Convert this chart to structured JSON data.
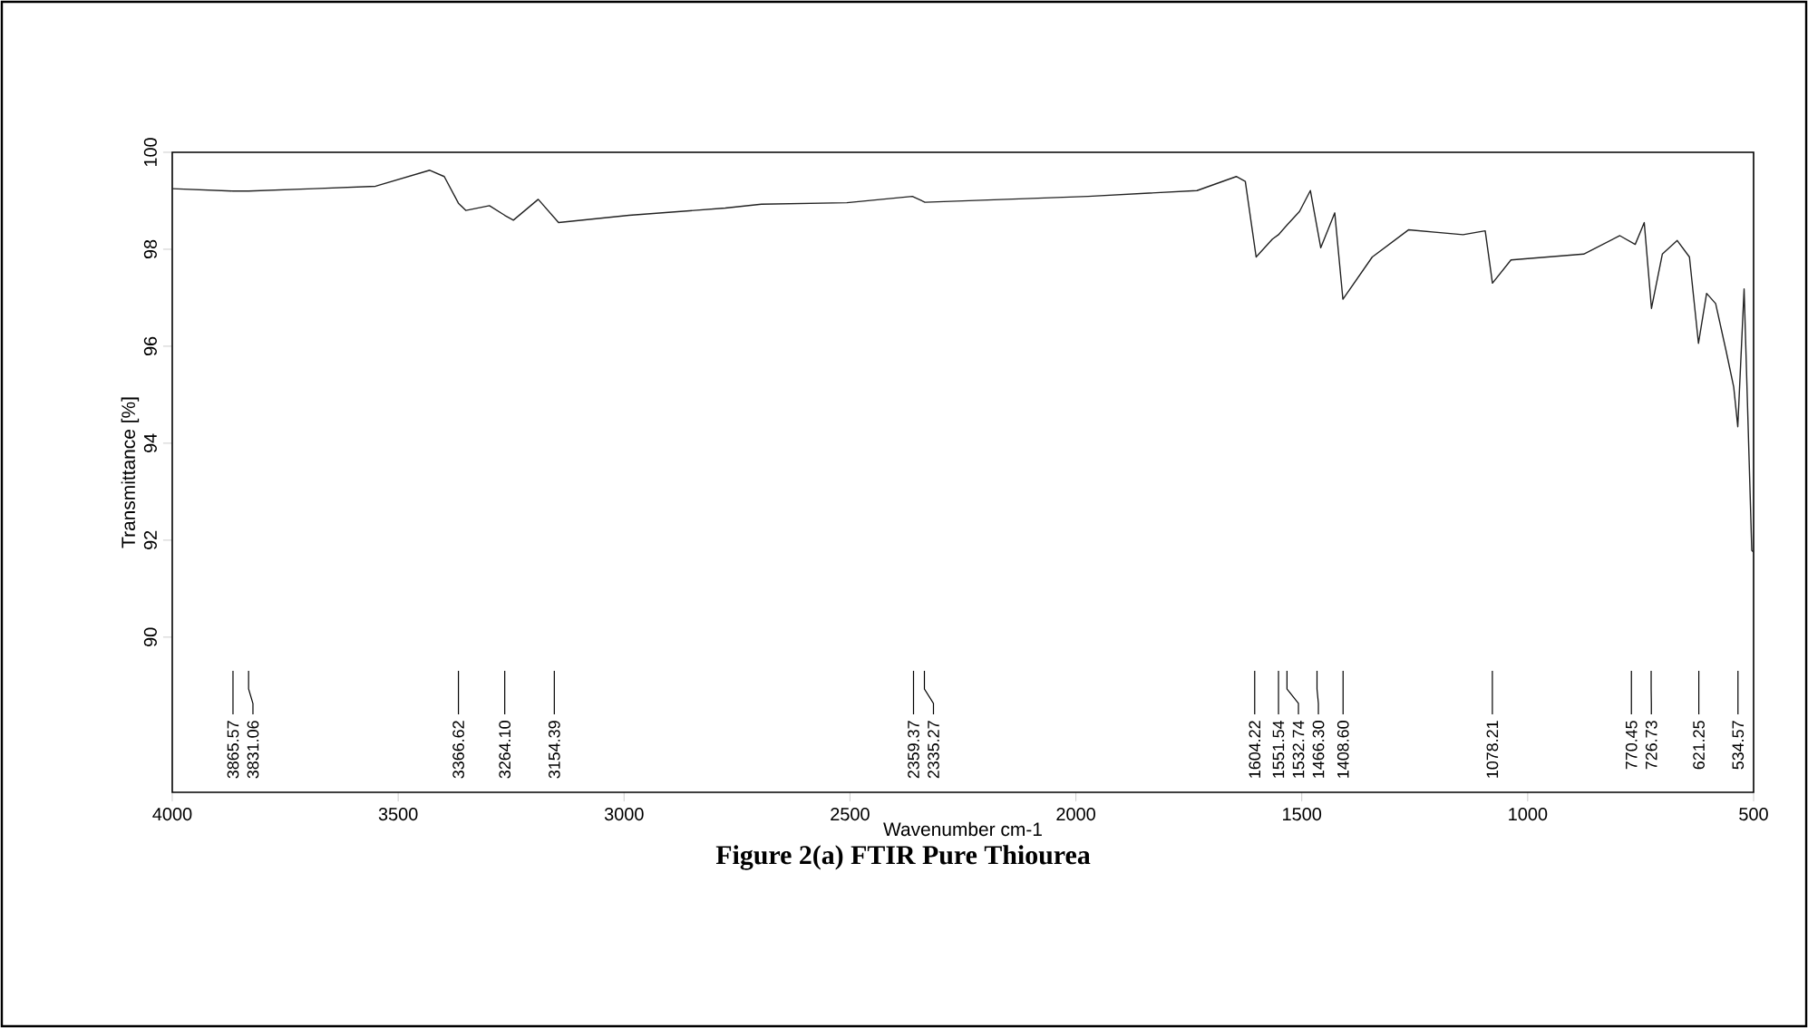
{
  "chart_data": {
    "type": "line",
    "title": "Figure 2(a) FTIR Pure Thiourea",
    "xlabel": "Wavenumber cm-1",
    "ylabel": "Transmittance [%]",
    "xlim": [
      4000,
      500
    ],
    "ylim": [
      86.8,
      100
    ],
    "xticks": [
      4000,
      3500,
      3000,
      2500,
      2000,
      1500,
      1000,
      500
    ],
    "yticks": [
      90,
      92,
      94,
      96,
      98,
      100
    ],
    "grid": false,
    "marker": "none",
    "line_style": "solid",
    "series": [
      {
        "color": "#222222",
        "x": [
          4000,
          3865.57,
          3831.06,
          3687,
          3550,
          3430,
          3398,
          3366.62,
          3350,
          3298,
          3264.1,
          3245,
          3190,
          3145,
          2989,
          2776,
          2696,
          2507,
          2362,
          2334,
          1973,
          1732,
          1645,
          1625,
          1601,
          1565,
          1551.54,
          1532.74,
          1505,
          1481,
          1458,
          1427,
          1409,
          1344,
          1264,
          1143,
          1094,
          1078,
          1037,
          876,
          796,
          762,
          742,
          726,
          702,
          669,
          642,
          622,
          604,
          584,
          561,
          544,
          535,
          521,
          504,
          500
        ],
        "values": [
          99.25,
          99.2,
          99.2,
          99.25,
          99.3,
          99.63,
          99.5,
          98.95,
          98.8,
          98.9,
          98.7,
          98.6,
          99.03,
          98.55,
          98.7,
          98.85,
          98.93,
          98.96,
          99.09,
          98.97,
          99.09,
          99.21,
          99.5,
          99.4,
          97.84,
          98.21,
          98.3,
          98.5,
          98.78,
          99.21,
          98.03,
          98.75,
          96.97,
          97.84,
          98.4,
          98.3,
          98.38,
          97.3,
          97.78,
          97.9,
          98.28,
          98.1,
          98.55,
          96.78,
          97.9,
          98.18,
          97.84,
          96.06,
          97.09,
          96.88,
          95.91,
          95.16,
          94.34,
          97.18,
          91.79,
          91.75
        ]
      }
    ],
    "annotations": [
      {
        "text": "3865.57",
        "x": 3865.57
      },
      {
        "text": "3831.06",
        "x": 3831.06
      },
      {
        "text": "3366.62",
        "x": 3366.62
      },
      {
        "text": "3264.10",
        "x": 3264.1
      },
      {
        "text": "3154.39",
        "x": 3154.39
      },
      {
        "text": "2359.37",
        "x": 2359.37
      },
      {
        "text": "2335.27",
        "x": 2335.27
      },
      {
        "text": "1604.22",
        "x": 1604.22
      },
      {
        "text": "1551.54",
        "x": 1551.54
      },
      {
        "text": "1532.74",
        "x": 1532.74
      },
      {
        "text": "1466.30",
        "x": 1466.3
      },
      {
        "text": "1408.60",
        "x": 1408.6
      },
      {
        "text": "1078.21",
        "x": 1078.21
      },
      {
        "text": "770.45",
        "x": 770.45
      },
      {
        "text": "726.73",
        "x": 726.73
      },
      {
        "text": "621.25",
        "x": 621.25
      },
      {
        "text": "534.57",
        "x": 534.57
      }
    ]
  }
}
